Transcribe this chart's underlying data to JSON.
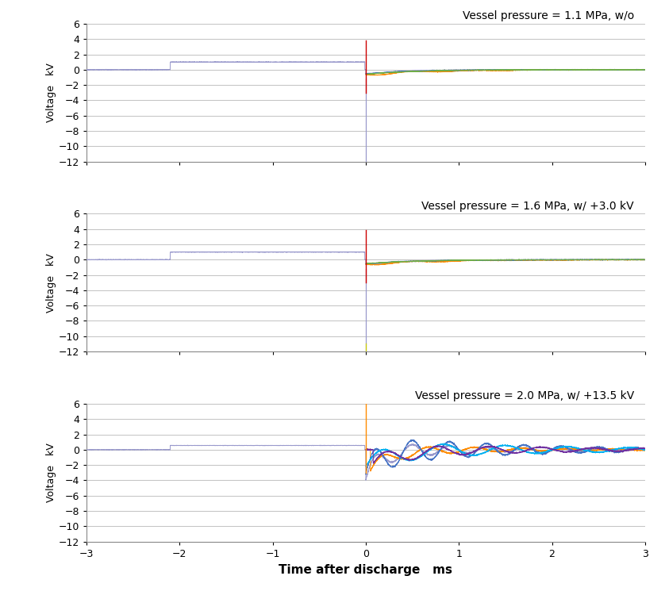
{
  "titles": [
    "Vessel pressure = 1.1 MPa, w/o",
    "Vessel pressure = 1.6 MPa, w/ +3.0 kV",
    "Vessel pressure = 2.0 MPa, w/ +13.5 kV"
  ],
  "xlabel": "Time after discharge   ms",
  "ylabel": "Voltage   kV",
  "xlim": [
    -3,
    3
  ],
  "ylim": [
    -12,
    6
  ],
  "yticks": [
    6,
    4,
    2,
    0,
    -2,
    -4,
    -6,
    -8,
    -10,
    -12
  ],
  "xticks": [
    -3,
    -2,
    -1,
    0,
    1,
    2,
    3
  ],
  "colors": {
    "purple_light": "#9999CC",
    "orange": "#FF8C00",
    "blue": "#4472C4",
    "red": "#CC0000",
    "green": "#70AD47",
    "light_blue": "#00B0F0",
    "dark_blue": "#203864",
    "purple_dark": "#7030A0"
  },
  "background_color": "#FFFFFF",
  "grid_color": "#AAAAAA"
}
